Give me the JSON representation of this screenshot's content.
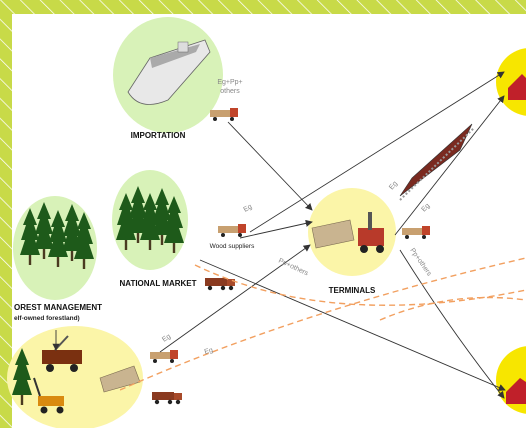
{
  "labels": {
    "importation": "IMPORTATION",
    "import_flow_line1": "Eg+Pp+",
    "import_flow_line2": "others",
    "national_market": "NATIONAL MARKET",
    "wood_suppliers": "Wood suppliers",
    "supplier_flow_eg": "Eg",
    "supplier_flow_pp": "Pp+others",
    "terminals": "TERMINALS",
    "train_flow_eg": "Eg",
    "terminal_flow_eg": "Eg",
    "terminal_flow_pp": "Pp+others",
    "forest_management": "OREST MANAGEMENT",
    "forest_management_sub": "elf-owned forestland)",
    "forest_flow_eg_1": "Eg",
    "forest_flow_eg_2": "Eg"
  }
}
